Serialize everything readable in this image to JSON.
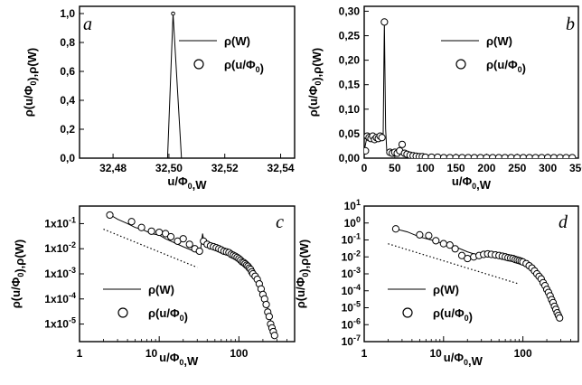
{
  "figure": {
    "background": "#ffffff",
    "ink": "#000000"
  },
  "chart_data": [
    {
      "id": "a",
      "type": "line",
      "panel_label": "a",
      "xlabel": "u/Φ0,W",
      "ylabel": "ρ(u/Φ0),ρ(W)",
      "xlim": [
        32.468,
        32.545
      ],
      "ylim": [
        0,
        1.05
      ],
      "x_ticks": [
        32.48,
        32.5,
        32.52,
        32.54
      ],
      "x_tick_labels": [
        "32,48",
        "32,50",
        "32,52",
        "32,54"
      ],
      "y_ticks": [
        0,
        0.2,
        0.4,
        0.6,
        0.8,
        1.0
      ],
      "y_tick_labels": [
        "0,0",
        "0,2",
        "0,4",
        "0,6",
        "0,8",
        "1,0"
      ],
      "legend": {
        "position": "top-right",
        "line_label": "ρ(W)",
        "marker_label": "ρ(u/Φ0)"
      },
      "series": [
        {
          "name": "ρ(W)",
          "style": "line",
          "x": [
            32.468,
            32.4995,
            32.5015,
            32.5045,
            32.545
          ],
          "y": [
            0,
            0,
            1.0,
            0,
            0
          ]
        },
        {
          "name": "ρ(u/Φ0)",
          "style": "markers",
          "x": [
            32.5015
          ],
          "y": [
            1.0
          ]
        }
      ]
    },
    {
      "id": "b",
      "type": "line",
      "panel_label": "b",
      "xlabel": "u/Φ0,W",
      "ylabel": "ρ(u/Φ0),ρ(W)",
      "xlim": [
        0,
        350
      ],
      "ylim": [
        0,
        0.31
      ],
      "x_ticks": [
        0,
        50,
        100,
        150,
        200,
        250,
        300,
        350
      ],
      "x_tick_labels": [
        "0",
        "50",
        "100",
        "150",
        "200",
        "250",
        "300",
        "350"
      ],
      "y_ticks": [
        0,
        0.05,
        0.1,
        0.15,
        0.2,
        0.25,
        0.3
      ],
      "y_tick_labels": [
        "0,00",
        "0,05",
        "0,10",
        "0,15",
        "0,20",
        "0,25",
        "0,30"
      ],
      "legend": {
        "position": "top-right",
        "line_label": "ρ(W)",
        "marker_label": "ρ(u/Φ0)"
      },
      "series": [
        {
          "name": "ρ(W)",
          "style": "line",
          "x": [
            0,
            4,
            8,
            12,
            16,
            20,
            24,
            28,
            31,
            33,
            35,
            37,
            40,
            45,
            50,
            55,
            60,
            70,
            80,
            100,
            150,
            200,
            250,
            300,
            345
          ],
          "y": [
            0.015,
            0.04,
            0.045,
            0.04,
            0.042,
            0.04,
            0.045,
            0.04,
            0.05,
            0.278,
            0.06,
            0.01,
            0.012,
            0.01,
            0.012,
            0.015,
            0.01,
            0.005,
            0.003,
            0.002,
            0.001,
            0.001,
            0.001,
            0.001,
            0.001
          ]
        },
        {
          "name": "ρ(u/Φ0)",
          "style": "markers",
          "x": [
            2,
            5,
            8,
            11,
            14,
            17,
            20,
            23,
            26,
            29,
            33,
            42,
            46,
            50,
            54,
            58,
            62,
            66,
            70,
            75,
            80,
            85,
            90,
            95,
            100,
            110,
            120,
            130,
            140,
            150,
            160,
            170,
            180,
            190,
            200,
            210,
            220,
            230,
            240,
            250,
            260,
            270,
            280,
            290,
            300,
            310,
            320,
            330,
            340
          ],
          "y": [
            0.015,
            0.045,
            0.042,
            0.04,
            0.045,
            0.038,
            0.042,
            0.04,
            0.045,
            0.042,
            0.278,
            0.012,
            0.01,
            0.012,
            0.01,
            0.015,
            0.028,
            0.01,
            0.008,
            0.006,
            0.005,
            0.004,
            0.003,
            0.003,
            0.002,
            0.002,
            0.002,
            0.001,
            0.001,
            0.001,
            0.001,
            0.001,
            0.001,
            0.001,
            0.001,
            0.001,
            0.001,
            0.001,
            0.001,
            0.001,
            0.001,
            0.001,
            0.001,
            0.001,
            0.001,
            0.001,
            0.001,
            0.001,
            0.001
          ]
        }
      ]
    },
    {
      "id": "c",
      "type": "scatter",
      "panel_label": "c",
      "xlabel": "u/Φ0,W",
      "ylabel": "ρ(u/Φ0),ρ(W)",
      "log_x": true,
      "log_y": true,
      "xlim": [
        1,
        500
      ],
      "ylim_log10": [
        -5.7,
        -0.3
      ],
      "x_tick_labels": [
        "1",
        "10",
        "100"
      ],
      "y_tick_labels": [
        "1x10-5",
        "1x10-4",
        "1x10-3",
        "1x10-2",
        "1x10-1"
      ],
      "legend": {
        "position": "bottom-left",
        "line_label": "ρ(W)",
        "marker_label": "ρ(u/Φ0)"
      },
      "series": [
        {
          "name": "ρ(W)",
          "style": "line",
          "x": [
            2.4,
            3,
            4,
            5,
            6,
            8,
            10,
            12,
            15,
            20,
            25,
            30,
            33,
            35,
            37,
            40,
            45,
            50,
            60,
            70,
            80,
            100,
            120,
            150,
            180,
            200,
            220,
            240,
            260,
            280
          ],
          "y": [
            0.23,
            0.15,
            0.1,
            0.07,
            0.06,
            0.04,
            0.035,
            0.025,
            0.018,
            0.012,
            0.009,
            0.007,
            0.009,
            0.04,
            0.013,
            0.012,
            0.01,
            0.009,
            0.007,
            0.006,
            0.005,
            0.003,
            0.0018,
            0.0008,
            0.0003,
            0.00015,
            7e-05,
            2.5e-05,
            8e-06,
            3.5e-06
          ]
        },
        {
          "name": "ρ(u/Φ0)",
          "style": "markers",
          "x": [
            2.4,
            4.5,
            6,
            8,
            10,
            12,
            14,
            17,
            20,
            24,
            28,
            32,
            36,
            40,
            44,
            48,
            52,
            56,
            60,
            65,
            70,
            75,
            80,
            85,
            90,
            95,
            100,
            105,
            110,
            115,
            120,
            125,
            130,
            135,
            140,
            145,
            150,
            160,
            170,
            180,
            190,
            200,
            210,
            220,
            230,
            240,
            250,
            260,
            270,
            280
          ],
          "y": [
            0.22,
            0.12,
            0.07,
            0.05,
            0.045,
            0.04,
            0.03,
            0.02,
            0.025,
            0.015,
            0.01,
            0.008,
            0.02,
            0.015,
            0.013,
            0.012,
            0.011,
            0.01,
            0.009,
            0.008,
            0.0075,
            0.007,
            0.006,
            0.0055,
            0.005,
            0.0045,
            0.004,
            0.0035,
            0.003,
            0.0028,
            0.0025,
            0.0022,
            0.002,
            0.0017,
            0.0015,
            0.0012,
            0.001,
            0.0008,
            0.0006,
            0.0004,
            0.00025,
            0.00015,
            0.0001,
            6e-05,
            3e-05,
            2e-05,
            1e-05,
            7e-06,
            5e-06,
            3.5e-06
          ]
        },
        {
          "name": "reference slope",
          "style": "dotted",
          "x": [
            2,
            30
          ],
          "y": [
            0.06,
            0.0018
          ]
        }
      ]
    },
    {
      "id": "d",
      "type": "scatter",
      "panel_label": "d",
      "xlabel": "u/Φ0,W",
      "ylabel": "ρ(u/Φ0),ρ(W)",
      "log_x": true,
      "log_y": true,
      "xlim": [
        1,
        500
      ],
      "ylim_log10": [
        -7,
        1
      ],
      "x_tick_labels": [
        "1",
        "10",
        "100"
      ],
      "y_tick_labels": [
        "10-7",
        "10-6",
        "10-5",
        "10-4",
        "10-3",
        "10-2",
        "10-1",
        "100",
        "101"
      ],
      "legend": {
        "position": "bottom-left",
        "line_label": "ρ(W)",
        "marker_label": "ρ(u/Φ0)"
      },
      "series": [
        {
          "name": "ρ(W)",
          "style": "line",
          "x": [
            2.5,
            3.5,
            5,
            7,
            10,
            14,
            20,
            28,
            35,
            40,
            50,
            60,
            80,
            100,
            120,
            150,
            180,
            200,
            230,
            260,
            290
          ],
          "y": [
            0.45,
            0.3,
            0.15,
            0.1,
            0.06,
            0.04,
            0.02,
            0.012,
            0.016,
            0.013,
            0.012,
            0.01,
            0.007,
            0.004,
            0.002,
            0.0008,
            0.0003,
            0.0001,
            3e-05,
            8e-06,
            2.5e-06
          ]
        },
        {
          "name": "ρ(u/Φ0)",
          "style": "markers",
          "x": [
            2.5,
            5,
            6.5,
            8,
            10,
            12,
            14,
            17,
            20,
            24,
            28,
            32,
            36,
            40,
            45,
            50,
            55,
            60,
            65,
            70,
            75,
            80,
            85,
            90,
            95,
            100,
            110,
            120,
            130,
            140,
            150,
            160,
            170,
            180,
            190,
            200,
            210,
            220,
            230,
            240,
            250,
            260,
            270,
            280,
            290
          ],
          "y": [
            0.45,
            0.2,
            0.18,
            0.09,
            0.06,
            0.05,
            0.03,
            0.012,
            0.008,
            0.01,
            0.012,
            0.014,
            0.015,
            0.014,
            0.013,
            0.012,
            0.011,
            0.01,
            0.009,
            0.0085,
            0.008,
            0.007,
            0.0065,
            0.006,
            0.0055,
            0.005,
            0.004,
            0.003,
            0.0022,
            0.0015,
            0.001,
            0.0007,
            0.0005,
            0.0003,
            0.0002,
            0.00012,
            8e-05,
            5e-05,
            3e-05,
            2e-05,
            1.2e-05,
            8e-06,
            5e-06,
            3.5e-06,
            2.5e-06
          ]
        },
        {
          "name": "reference slope",
          "style": "dotted",
          "x": [
            2,
            90
          ],
          "y": [
            0.06,
            0.00025
          ]
        }
      ]
    }
  ]
}
